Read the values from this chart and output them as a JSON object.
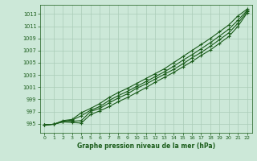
{
  "xlabel": "Graphe pression niveau de la mer (hPa)",
  "xlim": [
    -0.5,
    22.5
  ],
  "ylim": [
    993.5,
    1014.5
  ],
  "yticks": [
    995,
    997,
    999,
    1001,
    1003,
    1005,
    1007,
    1009,
    1011,
    1013
  ],
  "xticks": [
    0,
    1,
    2,
    3,
    4,
    5,
    6,
    7,
    8,
    9,
    10,
    11,
    12,
    13,
    14,
    15,
    16,
    17,
    18,
    19,
    20,
    21,
    22
  ],
  "background_color": "#cce8d8",
  "grid_color": "#aaccb8",
  "line_color": "#1a5c1a",
  "series": [
    [
      994.8,
      994.9,
      995.3,
      995.2,
      995.1,
      996.5,
      997.1,
      997.8,
      998.6,
      999.3,
      1000.1,
      1000.9,
      1001.8,
      1002.6,
      1003.4,
      1004.3,
      1005.2,
      1006.2,
      1007.1,
      1008.2,
      1009.3,
      1011.0,
      1013.2
    ],
    [
      994.8,
      994.9,
      995.3,
      995.4,
      995.5,
      997.0,
      997.5,
      998.4,
      999.2,
      999.9,
      1000.8,
      1001.5,
      1002.3,
      1003.1,
      1003.9,
      1004.8,
      1005.8,
      1006.7,
      1007.7,
      1008.8,
      1009.9,
      1011.5,
      1013.4
    ],
    [
      994.8,
      994.9,
      995.4,
      995.6,
      996.3,
      997.2,
      997.8,
      998.8,
      999.6,
      1000.3,
      1001.1,
      1001.9,
      1002.7,
      1003.5,
      1004.4,
      1005.4,
      1006.3,
      1007.3,
      1008.3,
      1009.4,
      1010.5,
      1012.0,
      1013.6
    ],
    [
      994.8,
      994.9,
      995.5,
      995.7,
      996.8,
      997.5,
      998.3,
      999.3,
      1000.1,
      1000.8,
      1001.6,
      1002.4,
      1003.2,
      1004.0,
      1005.0,
      1006.0,
      1007.0,
      1008.0,
      1009.0,
      1010.1,
      1011.2,
      1012.7,
      1013.8
    ]
  ],
  "marker": "+",
  "markersize": 3.5,
  "linewidth": 0.8
}
